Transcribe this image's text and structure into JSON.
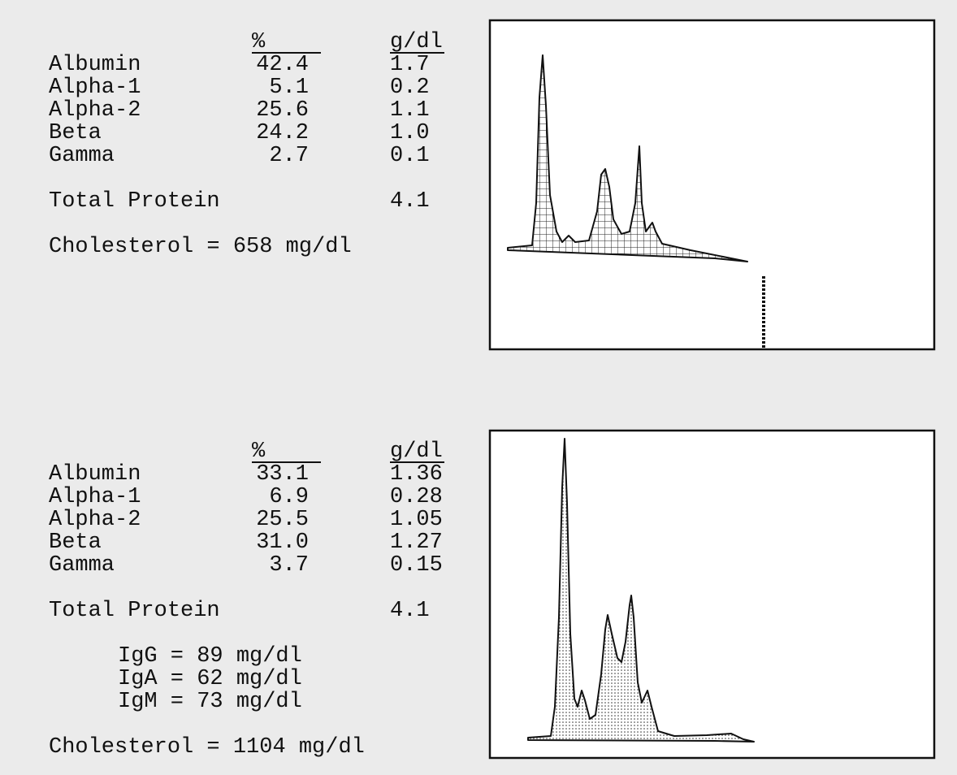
{
  "panels": [
    {
      "headers": [
        "%",
        "g/dl"
      ],
      "rows": [
        [
          "Albumin",
          "42.4",
          "1.7"
        ],
        [
          "Alpha-1",
          "5.1",
          "0.2"
        ],
        [
          "Alpha-2",
          "25.6",
          "1.1"
        ],
        [
          "Beta",
          "24.2",
          "1.0"
        ],
        [
          "Gamma",
          "2.7",
          "0.1"
        ]
      ],
      "total": {
        "label": "Total Protein",
        "value": "4.1"
      },
      "notes": [],
      "cholesterol": "Cholesterol = 658 mg/dl"
    },
    {
      "headers": [
        "%",
        "g/dl"
      ],
      "rows": [
        [
          "Albumin",
          "33.1",
          "1.36"
        ],
        [
          "Alpha-1",
          "6.9",
          "0.28"
        ],
        [
          "Alpha-2",
          "25.5",
          "1.05"
        ],
        [
          "Beta",
          "31.0",
          "1.27"
        ],
        [
          "Gamma",
          "3.7",
          "0.15"
        ]
      ],
      "total": {
        "label": "Total Protein",
        "value": "4.1"
      },
      "notes": [
        "IgG = 89 mg/dl",
        "IgA = 62 mg/dl",
        "IgM = 73 mg/dl"
      ],
      "cholesterol": "Cholesterol = 1104 mg/dl"
    }
  ]
}
